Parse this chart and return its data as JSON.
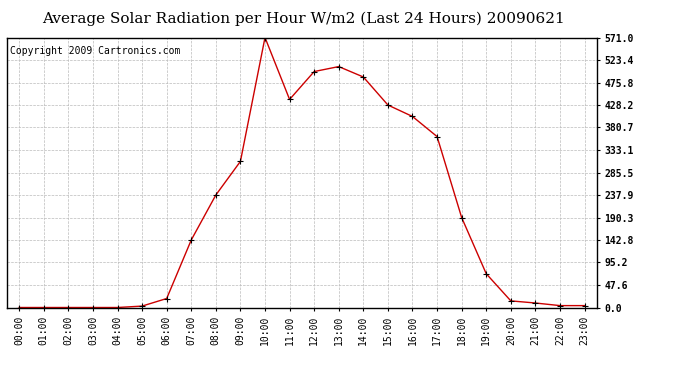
{
  "title": "Average Solar Radiation per Hour W/m2 (Last 24 Hours) 20090621",
  "copyright": "Copyright 2009 Cartronics.com",
  "hours": [
    "00:00",
    "01:00",
    "02:00",
    "03:00",
    "04:00",
    "05:00",
    "06:00",
    "07:00",
    "08:00",
    "09:00",
    "10:00",
    "11:00",
    "12:00",
    "13:00",
    "14:00",
    "15:00",
    "16:00",
    "17:00",
    "18:00",
    "19:00",
    "20:00",
    "21:00",
    "22:00",
    "23:00"
  ],
  "values": [
    0.0,
    0.0,
    0.0,
    0.0,
    0.0,
    3.0,
    19.0,
    142.8,
    237.9,
    309.0,
    571.0,
    440.0,
    499.0,
    509.5,
    487.5,
    428.2,
    404.0,
    361.5,
    190.3,
    71.4,
    14.0,
    9.5,
    4.0,
    4.0
  ],
  "yticks": [
    0.0,
    47.6,
    95.2,
    142.8,
    190.3,
    237.9,
    285.5,
    333.1,
    380.7,
    428.2,
    475.8,
    523.4,
    571.0
  ],
  "line_color": "#cc0000",
  "marker": "+",
  "marker_color": "#000000",
  "bg_color": "#ffffff",
  "grid_color": "#bbbbbb",
  "title_fontsize": 11,
  "copyright_fontsize": 7,
  "tick_fontsize": 7,
  "ymax": 571.0,
  "ymin": 0.0
}
